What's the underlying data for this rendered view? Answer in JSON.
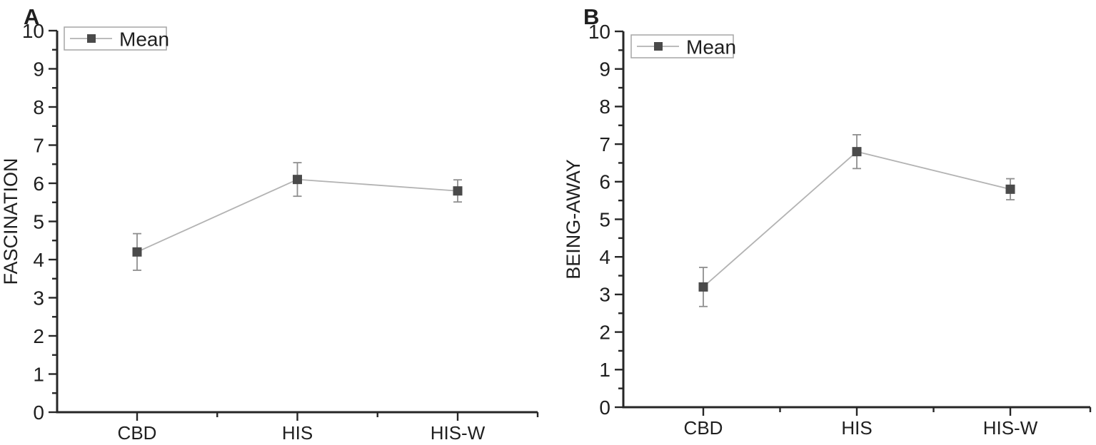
{
  "page": {
    "background": "#ffffff"
  },
  "colors": {
    "axis": "#262626",
    "text": "#1f1f1f",
    "series_line": "#b3b3b3",
    "error_bar": "#8f8f8f",
    "marker": "#4a4a4a",
    "legend_border": "#a6a6a6",
    "legend_fill": "#ffffff"
  },
  "chart_data": [
    {
      "type": "line",
      "panel_label": "A",
      "title": "",
      "xlabel": "",
      "ylabel": "FASCINATION",
      "categories": [
        "CBD",
        "HIS",
        "HIS-W"
      ],
      "series": [
        {
          "name": "Mean",
          "values": [
            4.2,
            6.1,
            5.8
          ],
          "errors": [
            0.48,
            0.44,
            0.29
          ]
        }
      ],
      "ylim": [
        0,
        10
      ],
      "ytick_step": 1,
      "yminor_step": 0.5,
      "grid": false,
      "legend": {
        "label": "Mean",
        "position": "top-left",
        "border": true
      }
    },
    {
      "type": "line",
      "panel_label": "B",
      "title": "",
      "xlabel": "",
      "ylabel": "BEING-AWAY",
      "categories": [
        "CBD",
        "HIS",
        "HIS-W"
      ],
      "series": [
        {
          "name": "Mean",
          "values": [
            3.2,
            6.8,
            5.8
          ],
          "errors": [
            0.52,
            0.45,
            0.28
          ]
        }
      ],
      "ylim": [
        0,
        10
      ],
      "ytick_step": 1,
      "yminor_step": 0.5,
      "grid": false,
      "legend": {
        "label": "Mean",
        "position": "top-left",
        "border": true
      }
    }
  ]
}
